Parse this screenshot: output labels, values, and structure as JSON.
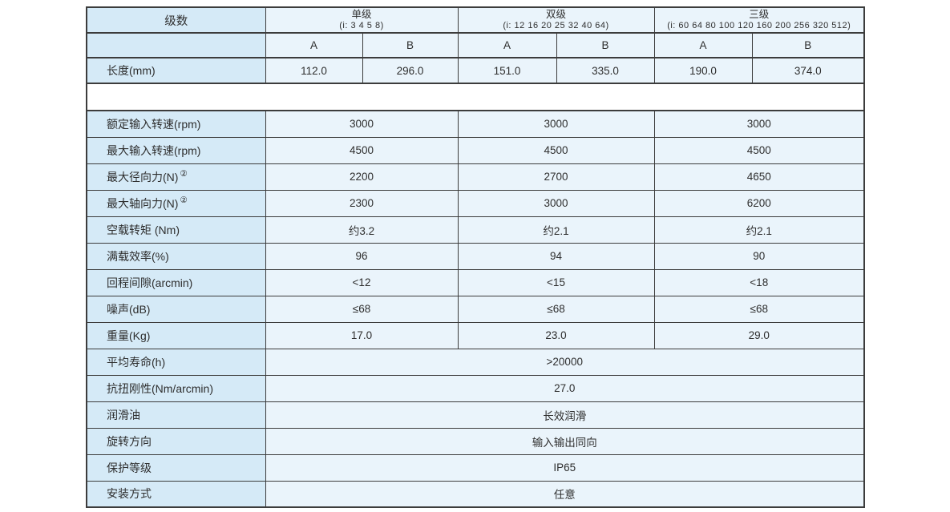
{
  "colors": {
    "label_cell_bg": "#d5eaf7",
    "data_cell_bg": "#eaf4fb",
    "gap_bg": "#ffffff",
    "border": "#3c3c3c",
    "text": "#2e2e2e"
  },
  "table": {
    "corner_label": "级数",
    "groups": [
      {
        "name": "单级",
        "ratios": "(i: 3 4 5 8)"
      },
      {
        "name": "双级",
        "ratios": "(i: 12 16 20 25 32 40 64)"
      },
      {
        "name": "三级",
        "ratios": "(i: 60 64 80 100 120 160 200 256 320 512)"
      }
    ],
    "sub_headers": [
      "A",
      "B",
      "A",
      "B",
      "A",
      "B"
    ],
    "length_row": {
      "label": "长度(mm)",
      "values": [
        "112.0",
        "296.0",
        "151.0",
        "335.0",
        "190.0",
        "374.0"
      ]
    },
    "spec_rows_grouped": [
      {
        "label": "额定输入转速(rpm)",
        "sup": "",
        "values": [
          "3000",
          "3000",
          "3000"
        ]
      },
      {
        "label": "最大输入转速(rpm)",
        "sup": "",
        "values": [
          "4500",
          "4500",
          "4500"
        ]
      },
      {
        "label": "最大径向力(N)",
        "sup": "②",
        "values": [
          "2200",
          "2700",
          "4650"
        ]
      },
      {
        "label": "最大轴向力(N)",
        "sup": "②",
        "values": [
          "2300",
          "3000",
          "6200"
        ]
      },
      {
        "label": "空载转矩 (Nm)",
        "sup": "",
        "values": [
          "约3.2",
          "约2.1",
          "约2.1"
        ]
      },
      {
        "label": "满载效率(%)",
        "sup": "",
        "values": [
          "96",
          "94",
          "90"
        ]
      },
      {
        "label": "回程间隙(arcmin)",
        "sup": "",
        "values": [
          "<12",
          "<15",
          "<18"
        ]
      },
      {
        "label": "噪声(dB)",
        "sup": "",
        "values": [
          "≤68",
          "≤68",
          "≤68"
        ]
      },
      {
        "label": "重量(Kg)",
        "sup": "",
        "values": [
          "17.0",
          "23.0",
          "29.0"
        ]
      }
    ],
    "spec_rows_full": [
      {
        "label": "平均寿命(h)",
        "value": ">20000"
      },
      {
        "label": "抗扭刚性(Nm/arcmin)",
        "value": "27.0"
      },
      {
        "label": "润滑油",
        "value": "长效润滑"
      },
      {
        "label": "旋转方向",
        "value": "输入输出同向"
      },
      {
        "label": "保护等级",
        "value": "IP65"
      },
      {
        "label": "安装方式",
        "value": "任意"
      }
    ]
  }
}
